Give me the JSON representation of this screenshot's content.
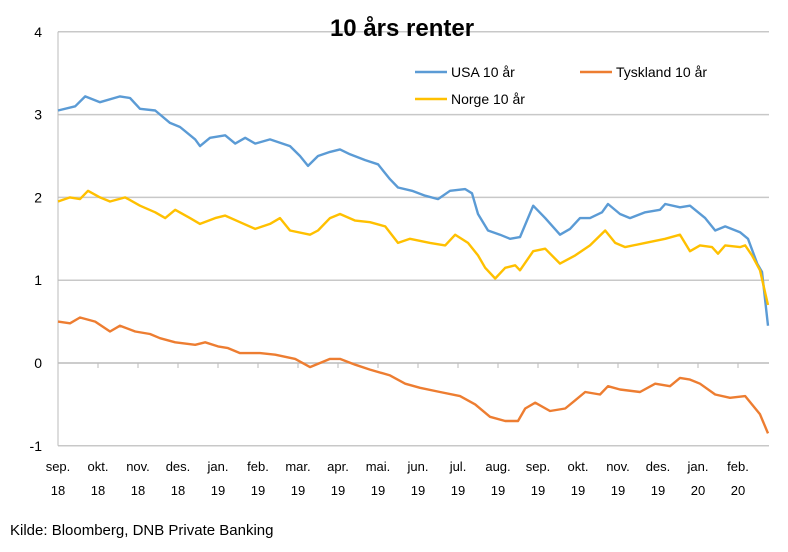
{
  "chart_data": {
    "type": "line",
    "title": "10 års renter",
    "xlabel": "",
    "ylabel": "",
    "ylim": [
      -1,
      4
    ],
    "yticks": [
      "-1",
      "0",
      "1",
      "2",
      "3",
      "4"
    ],
    "xlim_months_since_sep18": [
      0,
      17.75
    ],
    "x_ticks": [
      {
        "m": "sep.",
        "y": "18"
      },
      {
        "m": "okt.",
        "y": "18"
      },
      {
        "m": "nov.",
        "y": "18"
      },
      {
        "m": "des.",
        "y": "18"
      },
      {
        "m": "jan.",
        "y": "19"
      },
      {
        "m": "feb.",
        "y": "19"
      },
      {
        "m": "mar.",
        "y": "19"
      },
      {
        "m": "apr.",
        "y": "19"
      },
      {
        "m": "mai.",
        "y": "19"
      },
      {
        "m": "jun.",
        "y": "19"
      },
      {
        "m": "jul.",
        "y": "19"
      },
      {
        "m": "aug.",
        "y": "19"
      },
      {
        "m": "sep.",
        "y": "19"
      },
      {
        "m": "okt.",
        "y": "19"
      },
      {
        "m": "nov.",
        "y": "19"
      },
      {
        "m": "des.",
        "y": "19"
      },
      {
        "m": "jan.",
        "y": "20"
      },
      {
        "m": "feb.",
        "y": "20"
      }
    ],
    "grid": true,
    "legend_position": "top-right",
    "series": [
      {
        "name": "USA 10 år",
        "color": "#5b9bd5",
        "points": [
          [
            0,
            3.05
          ],
          [
            0.43,
            3.1
          ],
          [
            0.68,
            3.22
          ],
          [
            1.05,
            3.15
          ],
          [
            1.55,
            3.22
          ],
          [
            1.8,
            3.2
          ],
          [
            2.05,
            3.07
          ],
          [
            2.43,
            3.05
          ],
          [
            2.8,
            2.9
          ],
          [
            3.05,
            2.85
          ],
          [
            3.43,
            2.7
          ],
          [
            3.55,
            2.62
          ],
          [
            3.8,
            2.72
          ],
          [
            4.18,
            2.75
          ],
          [
            4.43,
            2.65
          ],
          [
            4.68,
            2.72
          ],
          [
            4.93,
            2.65
          ],
          [
            5.3,
            2.7
          ],
          [
            5.8,
            2.62
          ],
          [
            6.05,
            2.5
          ],
          [
            6.25,
            2.38
          ],
          [
            6.5,
            2.5
          ],
          [
            6.8,
            2.55
          ],
          [
            7.05,
            2.58
          ],
          [
            7.3,
            2.52
          ],
          [
            7.68,
            2.45
          ],
          [
            8,
            2.4
          ],
          [
            8.3,
            2.22
          ],
          [
            8.5,
            2.12
          ],
          [
            8.85,
            2.08
          ],
          [
            9.18,
            2.02
          ],
          [
            9.5,
            1.98
          ],
          [
            9.8,
            2.08
          ],
          [
            10.18,
            2.1
          ],
          [
            10.35,
            2.05
          ],
          [
            10.5,
            1.8
          ],
          [
            10.75,
            1.6
          ],
          [
            11.05,
            1.55
          ],
          [
            11.3,
            1.5
          ],
          [
            11.55,
            1.52
          ],
          [
            11.88,
            1.9
          ],
          [
            12.18,
            1.75
          ],
          [
            12.55,
            1.55
          ],
          [
            12.8,
            1.62
          ],
          [
            13.05,
            1.75
          ],
          [
            13.3,
            1.75
          ],
          [
            13.6,
            1.82
          ],
          [
            13.75,
            1.92
          ],
          [
            14.05,
            1.8
          ],
          [
            14.3,
            1.75
          ],
          [
            14.68,
            1.82
          ],
          [
            15.05,
            1.85
          ],
          [
            15.18,
            1.92
          ],
          [
            15.55,
            1.88
          ],
          [
            15.8,
            1.9
          ],
          [
            16.18,
            1.75
          ],
          [
            16.43,
            1.6
          ],
          [
            16.68,
            1.65
          ],
          [
            17.05,
            1.58
          ],
          [
            17.25,
            1.5
          ],
          [
            17.48,
            1.2
          ],
          [
            17.6,
            1.1
          ],
          [
            17.75,
            0.45
          ]
        ]
      },
      {
        "name": "Tyskland 10 år",
        "color": "#ed7d31",
        "points": [
          [
            0,
            0.5
          ],
          [
            0.3,
            0.48
          ],
          [
            0.55,
            0.55
          ],
          [
            0.93,
            0.5
          ],
          [
            1.3,
            0.38
          ],
          [
            1.55,
            0.45
          ],
          [
            1.93,
            0.38
          ],
          [
            2.3,
            0.35
          ],
          [
            2.55,
            0.3
          ],
          [
            2.93,
            0.25
          ],
          [
            3.43,
            0.22
          ],
          [
            3.68,
            0.25
          ],
          [
            4,
            0.2
          ],
          [
            4.25,
            0.18
          ],
          [
            4.55,
            0.12
          ],
          [
            5.05,
            0.12
          ],
          [
            5.43,
            0.1
          ],
          [
            5.93,
            0.05
          ],
          [
            6.3,
            -0.05
          ],
          [
            6.8,
            0.05
          ],
          [
            7.05,
            0.05
          ],
          [
            7.43,
            -0.02
          ],
          [
            7.8,
            -0.08
          ],
          [
            8.3,
            -0.15
          ],
          [
            8.68,
            -0.25
          ],
          [
            9.05,
            -0.3
          ],
          [
            9.55,
            -0.35
          ],
          [
            10.05,
            -0.4
          ],
          [
            10.43,
            -0.5
          ],
          [
            10.8,
            -0.65
          ],
          [
            11.18,
            -0.7
          ],
          [
            11.5,
            -0.7
          ],
          [
            11.68,
            -0.55
          ],
          [
            11.93,
            -0.48
          ],
          [
            12.3,
            -0.58
          ],
          [
            12.68,
            -0.55
          ],
          [
            12.93,
            -0.45
          ],
          [
            13.18,
            -0.35
          ],
          [
            13.55,
            -0.38
          ],
          [
            13.75,
            -0.28
          ],
          [
            14.05,
            -0.32
          ],
          [
            14.55,
            -0.35
          ],
          [
            14.93,
            -0.25
          ],
          [
            15.3,
            -0.28
          ],
          [
            15.55,
            -0.18
          ],
          [
            15.8,
            -0.2
          ],
          [
            16.05,
            -0.25
          ],
          [
            16.43,
            -0.38
          ],
          [
            16.8,
            -0.42
          ],
          [
            17.18,
            -0.4
          ],
          [
            17.55,
            -0.62
          ],
          [
            17.75,
            -0.85
          ]
        ]
      },
      {
        "name": "Norge 10 år",
        "color": "#ffc000",
        "points": [
          [
            0,
            1.95
          ],
          [
            0.3,
            2.0
          ],
          [
            0.55,
            1.98
          ],
          [
            0.75,
            2.08
          ],
          [
            1.05,
            2.0
          ],
          [
            1.3,
            1.95
          ],
          [
            1.68,
            2.0
          ],
          [
            2.05,
            1.9
          ],
          [
            2.43,
            1.82
          ],
          [
            2.68,
            1.75
          ],
          [
            2.93,
            1.85
          ],
          [
            3.3,
            1.75
          ],
          [
            3.55,
            1.68
          ],
          [
            3.93,
            1.75
          ],
          [
            4.18,
            1.78
          ],
          [
            4.55,
            1.7
          ],
          [
            4.93,
            1.62
          ],
          [
            5.3,
            1.68
          ],
          [
            5.55,
            1.75
          ],
          [
            5.8,
            1.6
          ],
          [
            6.3,
            1.55
          ],
          [
            6.5,
            1.6
          ],
          [
            6.8,
            1.75
          ],
          [
            7.05,
            1.8
          ],
          [
            7.43,
            1.72
          ],
          [
            7.8,
            1.7
          ],
          [
            8.18,
            1.65
          ],
          [
            8.5,
            1.45
          ],
          [
            8.8,
            1.5
          ],
          [
            9.3,
            1.45
          ],
          [
            9.68,
            1.42
          ],
          [
            9.93,
            1.55
          ],
          [
            10.25,
            1.45
          ],
          [
            10.5,
            1.3
          ],
          [
            10.68,
            1.15
          ],
          [
            10.93,
            1.02
          ],
          [
            11.18,
            1.15
          ],
          [
            11.43,
            1.18
          ],
          [
            11.55,
            1.12
          ],
          [
            11.88,
            1.35
          ],
          [
            12.18,
            1.38
          ],
          [
            12.55,
            1.2
          ],
          [
            12.93,
            1.3
          ],
          [
            13.3,
            1.42
          ],
          [
            13.68,
            1.6
          ],
          [
            13.93,
            1.45
          ],
          [
            14.18,
            1.4
          ],
          [
            14.68,
            1.45
          ],
          [
            15.18,
            1.5
          ],
          [
            15.55,
            1.55
          ],
          [
            15.8,
            1.35
          ],
          [
            16.05,
            1.42
          ],
          [
            16.35,
            1.4
          ],
          [
            16.5,
            1.32
          ],
          [
            16.68,
            1.42
          ],
          [
            17.05,
            1.4
          ],
          [
            17.18,
            1.42
          ],
          [
            17.35,
            1.3
          ],
          [
            17.55,
            1.12
          ],
          [
            17.75,
            0.7
          ]
        ]
      }
    ]
  },
  "source": "Kilde: Bloomberg, DNB Private Banking"
}
